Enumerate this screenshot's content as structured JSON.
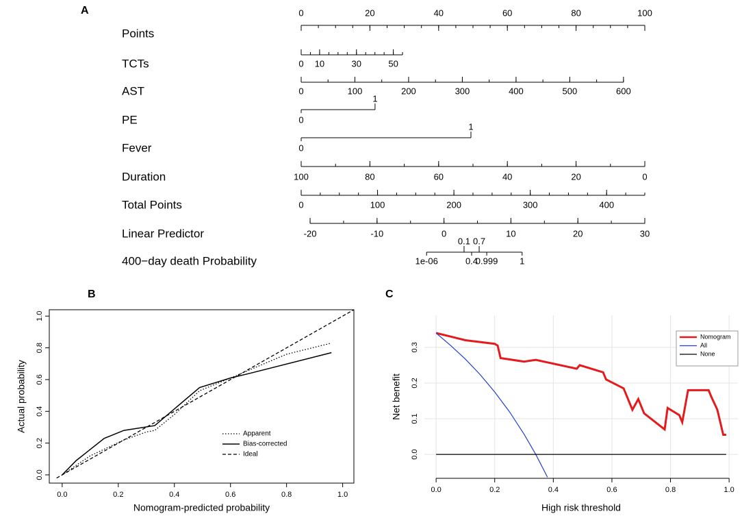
{
  "chart_data": [
    {
      "type": "nomogram",
      "panel": "A",
      "scales": [
        {
          "name": "Points",
          "lim": [
            0,
            100
          ],
          "points": [
            0,
            100
          ],
          "ticks": [
            0,
            20,
            40,
            60,
            80,
            100
          ],
          "minor_ticks": [
            0,
            5,
            10,
            15,
            20,
            25,
            30,
            35,
            40,
            45,
            50,
            55,
            60,
            65,
            70,
            75,
            80,
            85,
            90,
            95,
            100
          ]
        },
        {
          "name": "TCTs",
          "lim": [
            0,
            55
          ],
          "points": [
            0,
            29.5
          ],
          "ticks": [
            0,
            10,
            30,
            50
          ],
          "minor_ticks": [
            0,
            5,
            10,
            15,
            20,
            25,
            30,
            35,
            40,
            45,
            50,
            55
          ]
        },
        {
          "name": "AST",
          "lim": [
            0,
            600
          ],
          "points": [
            0,
            93.8
          ],
          "ticks": [
            0,
            100,
            200,
            300,
            400,
            500,
            600
          ],
          "minor_ticks": [
            0,
            50,
            100,
            150,
            200,
            250,
            300,
            350,
            400,
            450,
            500,
            550,
            600
          ]
        },
        {
          "name": "PE",
          "lim": [
            0,
            1
          ],
          "points": [
            0,
            21.5
          ],
          "ticks": [
            0,
            1
          ]
        },
        {
          "name": "Fever",
          "lim": [
            0,
            1
          ],
          "points": [
            0,
            49.4
          ],
          "ticks": [
            0,
            1
          ]
        },
        {
          "name": "Duration",
          "lim": [
            100,
            0
          ],
          "points": [
            0,
            100
          ],
          "ticks": [
            100,
            80,
            60,
            40,
            20,
            0
          ],
          "minor_ticks": [
            100,
            90,
            80,
            70,
            60,
            50,
            40,
            30,
            20,
            10,
            0
          ]
        },
        {
          "name": "Total Points",
          "lim": [
            0,
            450
          ],
          "points": [
            0,
            100
          ],
          "ticks": [
            0,
            100,
            200,
            300,
            400
          ],
          "minor_ticks": [
            0,
            25,
            50,
            75,
            100,
            125,
            150,
            175,
            200,
            225,
            250,
            275,
            300,
            325,
            350,
            375,
            400,
            425,
            450
          ]
        },
        {
          "name": "Linear Predictor",
          "lim": [
            -20,
            30
          ],
          "points": [
            2.6,
            100
          ],
          "ticks": [
            -20,
            -10,
            0,
            10,
            20,
            30
          ],
          "minor_ticks": [
            -20,
            -15,
            -10,
            -5,
            0,
            5,
            10,
            15,
            20,
            25,
            30
          ]
        },
        {
          "name": "400−day death Probability",
          "ticks": [
            {
              "value": 1e-06,
              "label": "1e-06"
            },
            0.1,
            0.4,
            0.7,
            0.999,
            1
          ],
          "tick_points": [
            36.5,
            47.4,
            49.6,
            51.8,
            54.0,
            64.3
          ]
        }
      ]
    },
    {
      "type": "line",
      "panel": "B",
      "x_label": "Nomogram-predicted probability",
      "y_label": "Actual probability",
      "xlim": [
        -0.046,
        1.04
      ],
      "ylim": [
        -0.052,
        1.04
      ],
      "box": true,
      "grid": false,
      "legend": "bottom right",
      "xticks": [
        {
          "value": 0,
          "label": "0.0"
        },
        0.2,
        0.4,
        0.6,
        0.8,
        {
          "value": 1,
          "label": "1.0"
        }
      ],
      "yticks": [
        {
          "value": 0,
          "label": "0.0"
        },
        0.2,
        0.4,
        0.6,
        0.8,
        {
          "value": 1,
          "label": "1.0"
        }
      ],
      "series": [
        {
          "name": "Apparent",
          "color": "#000000",
          "dash": "dotted",
          "width": 1.3,
          "x": [
            0,
            0.1,
            0.22,
            0.3,
            0.33,
            0.4,
            0.49,
            0.6,
            0.8,
            0.96
          ],
          "values": [
            0,
            0.12,
            0.22,
            0.27,
            0.28,
            0.38,
            0.53,
            0.61,
            0.76,
            0.83
          ]
        },
        {
          "name": "Bias-corrected",
          "color": "#000000",
          "dash": "solid",
          "width": 1.5,
          "x": [
            0,
            0.05,
            0.15,
            0.22,
            0.33,
            0.49,
            0.6,
            0.67,
            0.96
          ],
          "values": [
            0,
            0.09,
            0.23,
            0.28,
            0.31,
            0.55,
            0.61,
            0.64,
            0.77
          ]
        },
        {
          "name": "Ideal",
          "color": "#000000",
          "dash": "dashed",
          "width": 1.3,
          "x": [
            -0.02,
            1.04
          ],
          "values": [
            -0.02,
            1.04
          ]
        }
      ]
    },
    {
      "type": "line",
      "panel": "C",
      "x_label": "High risk threshold",
      "y_label": "Net benefit",
      "xlim": [
        -0.04,
        1.03
      ],
      "ylim": [
        -0.067,
        0.39
      ],
      "box": false,
      "grid": true,
      "legend": "top right",
      "xticks": [
        {
          "value": 0,
          "label": "0.0"
        },
        0.2,
        0.4,
        0.6,
        0.8,
        {
          "value": 1,
          "label": "1.0"
        }
      ],
      "yticks": [
        {
          "value": 0,
          "label": "0.0"
        },
        0.1,
        0.2,
        0.3
      ],
      "series": [
        {
          "name": "Nomogram",
          "color": "#e41a1c",
          "dash": "solid",
          "width": 3,
          "x": [
            0,
            0.05,
            0.1,
            0.2,
            0.21,
            0.22,
            0.3,
            0.34,
            0.48,
            0.49,
            0.57,
            0.58,
            0.64,
            0.67,
            0.69,
            0.71,
            0.78,
            0.79,
            0.83,
            0.84,
            0.86,
            0.93,
            0.94,
            0.96,
            0.98,
            0.99
          ],
          "values": [
            0.34,
            0.33,
            0.32,
            0.31,
            0.305,
            0.27,
            0.26,
            0.265,
            0.24,
            0.25,
            0.23,
            0.21,
            0.185,
            0.125,
            0.155,
            0.115,
            0.07,
            0.13,
            0.11,
            0.09,
            0.18,
            0.18,
            0.16,
            0.125,
            0.055,
            0.055
          ]
        },
        {
          "name": "All",
          "color": "#1f3fd6",
          "dash": "solid",
          "width": 1.2,
          "x": [
            0,
            0.05,
            0.1,
            0.15,
            0.2,
            0.25,
            0.3,
            0.34,
            0.38
          ],
          "values": [
            0.34,
            0.305,
            0.267,
            0.224,
            0.175,
            0.12,
            0.057,
            0,
            -0.064
          ]
        },
        {
          "name": "None",
          "color": "#000000",
          "dash": "solid",
          "width": 1.2,
          "x": [
            0,
            0.99
          ],
          "values": [
            0,
            0
          ]
        }
      ]
    }
  ]
}
